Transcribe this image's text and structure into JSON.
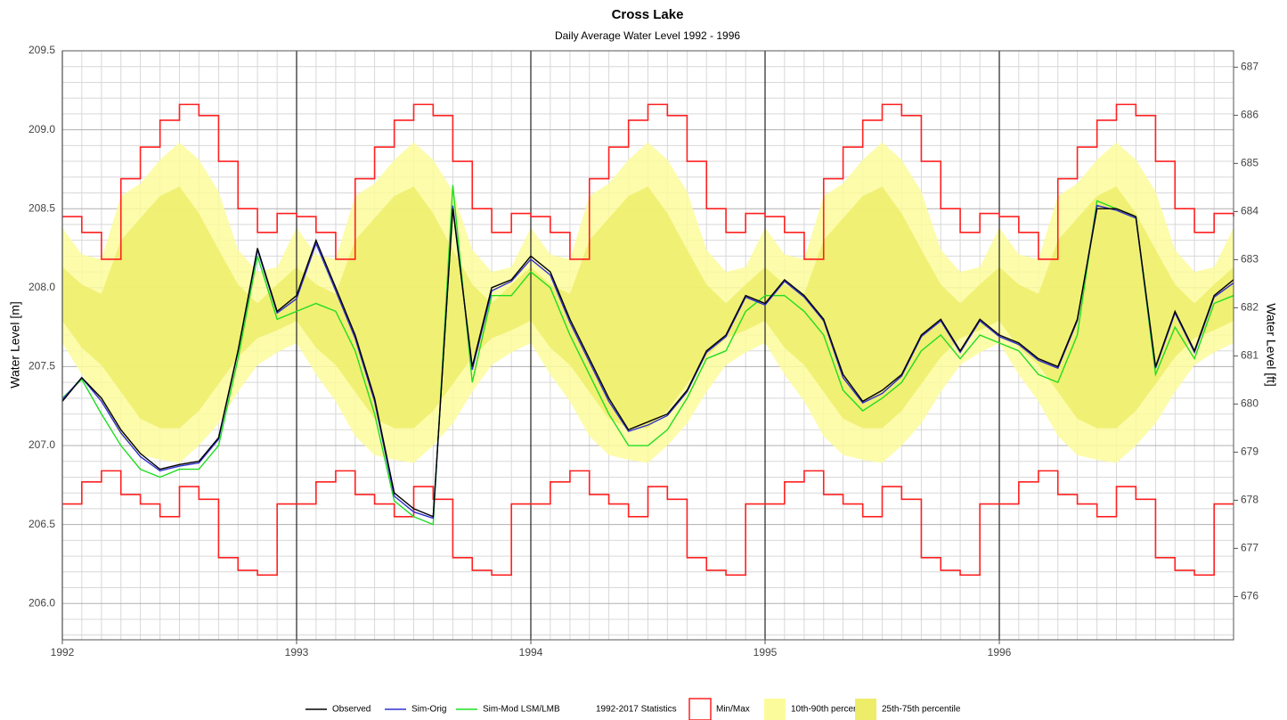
{
  "chart_data": {
    "type": "line",
    "title": "Cross Lake",
    "subtitle": "Daily Average Water Level 1992 - 1996",
    "ylabel": "Water Level [m]",
    "y2label": "Water Level [ft]",
    "x": [
      1992,
      1992.083,
      1992.167,
      1992.25,
      1992.333,
      1992.417,
      1992.5,
      1992.583,
      1992.667,
      1992.75,
      1992.833,
      1992.917,
      1993,
      1993.083,
      1993.167,
      1993.25,
      1993.333,
      1993.417,
      1993.5,
      1993.583,
      1993.667,
      1993.75,
      1993.833,
      1993.917,
      1994,
      1994.083,
      1994.167,
      1994.25,
      1994.333,
      1994.417,
      1994.5,
      1994.583,
      1994.667,
      1994.75,
      1994.833,
      1994.917,
      1995,
      1995.083,
      1995.167,
      1995.25,
      1995.333,
      1995.417,
      1995.5,
      1995.583,
      1995.667,
      1995.75,
      1995.833,
      1995.917,
      1996,
      1996.083,
      1996.167,
      1996.25,
      1996.333,
      1996.417,
      1996.5,
      1996.583,
      1996.667,
      1996.75,
      1996.833,
      1996.917,
      1997
    ],
    "xlim": [
      1992,
      1997
    ],
    "xticks": [
      1992,
      1993,
      1994,
      1995,
      1996
    ],
    "ylim": [
      205.77,
      209.5
    ],
    "yticks": [
      {
        "value": 206,
        "label": "206.0"
      },
      206.5,
      {
        "value": 207,
        "label": "207.0"
      },
      207.5,
      {
        "value": 208,
        "label": "208.0"
      },
      208.5,
      {
        "value": 209,
        "label": "209.0"
      },
      209.5
    ],
    "yminorticks": [
      205.8,
      205.9,
      206.1,
      206.2,
      206.3,
      206.4,
      206.6,
      206.7,
      206.8,
      206.9,
      207.1,
      207.2,
      207.3,
      207.4,
      207.6,
      207.7,
      207.8,
      207.9,
      208.1,
      208.2,
      208.3,
      208.4,
      208.6,
      208.7,
      208.8,
      208.9,
      209.1,
      209.2,
      209.3,
      209.4
    ],
    "y2lim": [
      675.1,
      687.34
    ],
    "y2ticks": [
      676,
      677,
      678,
      679,
      680,
      681,
      682,
      683,
      684,
      685,
      686,
      687
    ],
    "grid": true,
    "legend_heading": "1992-2017 Statistics",
    "ranges": [
      {
        "name": "10th-90th percentile",
        "color": "#fbfb9c",
        "style": "fill",
        "upper": [
          208.38,
          208.21,
          208.18,
          208.58,
          208.66,
          208.81,
          208.92,
          208.81,
          208.61,
          208.24,
          208.1,
          208.13,
          208.38,
          208.21,
          208.18,
          208.58,
          208.66,
          208.81,
          208.92,
          208.81,
          208.61,
          208.24,
          208.1,
          208.13,
          208.38,
          208.21,
          208.18,
          208.58,
          208.66,
          208.81,
          208.92,
          208.81,
          208.61,
          208.24,
          208.1,
          208.13,
          208.38,
          208.21,
          208.18,
          208.58,
          208.66,
          208.81,
          208.92,
          208.81,
          208.61,
          208.24,
          208.1,
          208.13,
          208.38,
          208.21,
          208.18,
          208.58,
          208.66,
          208.81,
          208.92,
          208.81,
          208.61,
          208.24,
          208.1,
          208.13,
          208.38
        ],
        "lower": [
          207.65,
          207.45,
          207.28,
          207.06,
          206.94,
          206.91,
          206.89,
          207.0,
          207.14,
          207.34,
          207.51,
          207.59,
          207.65,
          207.45,
          207.28,
          207.06,
          206.94,
          206.91,
          206.89,
          207.0,
          207.14,
          207.34,
          207.51,
          207.59,
          207.65,
          207.45,
          207.28,
          207.06,
          206.94,
          206.91,
          206.89,
          207.0,
          207.14,
          207.34,
          207.51,
          207.59,
          207.65,
          207.45,
          207.28,
          207.06,
          206.94,
          206.91,
          206.89,
          207.0,
          207.14,
          207.34,
          207.51,
          207.59,
          207.65,
          207.45,
          207.28,
          207.06,
          206.94,
          206.91,
          206.89,
          207.0,
          207.14,
          207.34,
          207.51,
          207.59,
          207.65
        ]
      },
      {
        "name": "25th-75th percentile",
        "color": "#eded6a",
        "style": "fill",
        "upper": [
          208.13,
          208.02,
          207.96,
          208.3,
          208.44,
          208.58,
          208.64,
          208.47,
          208.24,
          208.02,
          207.9,
          208.02,
          208.13,
          208.02,
          207.96,
          208.3,
          208.44,
          208.58,
          208.64,
          208.47,
          208.24,
          208.02,
          207.9,
          208.02,
          208.13,
          208.02,
          207.96,
          208.3,
          208.44,
          208.58,
          208.64,
          208.47,
          208.24,
          208.02,
          207.9,
          208.02,
          208.13,
          208.02,
          207.96,
          208.3,
          208.44,
          208.58,
          208.64,
          208.47,
          208.24,
          208.02,
          207.9,
          208.02,
          208.13,
          208.02,
          207.96,
          208.3,
          208.44,
          208.58,
          208.64,
          208.47,
          208.24,
          208.02,
          207.9,
          208.02,
          208.13
        ],
        "lower": [
          207.79,
          207.62,
          207.51,
          207.34,
          207.17,
          207.11,
          207.11,
          207.22,
          207.39,
          207.56,
          207.68,
          207.73,
          207.79,
          207.62,
          207.51,
          207.34,
          207.17,
          207.11,
          207.11,
          207.22,
          207.39,
          207.56,
          207.68,
          207.73,
          207.79,
          207.62,
          207.51,
          207.34,
          207.17,
          207.11,
          207.11,
          207.22,
          207.39,
          207.56,
          207.68,
          207.73,
          207.79,
          207.62,
          207.51,
          207.34,
          207.17,
          207.11,
          207.11,
          207.22,
          207.39,
          207.56,
          207.68,
          207.73,
          207.79,
          207.62,
          207.51,
          207.34,
          207.17,
          207.11,
          207.11,
          207.22,
          207.39,
          207.56,
          207.68,
          207.73,
          207.79
        ]
      },
      {
        "name": "Min/Max",
        "color": "#ff2020",
        "style": "outline",
        "upper": [
          208.45,
          208.35,
          208.18,
          208.69,
          208.89,
          209.06,
          209.16,
          209.09,
          208.8,
          208.5,
          208.35,
          208.47,
          208.45,
          208.35,
          208.18,
          208.69,
          208.89,
          209.06,
          209.16,
          209.09,
          208.8,
          208.5,
          208.35,
          208.47,
          208.45,
          208.35,
          208.18,
          208.69,
          208.89,
          209.06,
          209.16,
          209.09,
          208.8,
          208.5,
          208.35,
          208.47,
          208.45,
          208.35,
          208.18,
          208.69,
          208.89,
          209.06,
          209.16,
          209.09,
          208.8,
          208.5,
          208.35,
          208.47,
          208.45,
          208.35,
          208.18,
          208.69,
          208.89,
          209.06,
          209.16,
          209.09,
          208.8,
          208.5,
          208.35,
          208.47,
          208.45
        ],
        "lower": [
          206.63,
          206.77,
          206.84,
          206.69,
          206.63,
          206.55,
          206.74,
          206.66,
          206.29,
          206.21,
          206.18,
          206.63,
          206.63,
          206.77,
          206.84,
          206.69,
          206.63,
          206.55,
          206.74,
          206.66,
          206.29,
          206.21,
          206.18,
          206.63,
          206.63,
          206.77,
          206.84,
          206.69,
          206.63,
          206.55,
          206.74,
          206.66,
          206.29,
          206.21,
          206.18,
          206.63,
          206.63,
          206.77,
          206.84,
          206.69,
          206.63,
          206.55,
          206.74,
          206.66,
          206.29,
          206.21,
          206.18,
          206.63,
          206.63,
          206.77,
          206.84,
          206.69,
          206.63,
          206.55,
          206.74,
          206.66,
          206.29,
          206.21,
          206.18,
          206.63,
          206.63
        ]
      }
    ],
    "series": [
      {
        "name": "Observed",
        "color": "#000000",
        "values": [
          207.28,
          207.43,
          207.3,
          207.1,
          206.95,
          206.85,
          206.88,
          206.9,
          207.05,
          207.6,
          208.25,
          207.85,
          207.95,
          208.3,
          208.0,
          207.7,
          207.3,
          206.7,
          206.6,
          206.55,
          208.5,
          207.5,
          208.0,
          208.05,
          208.2,
          208.1,
          207.8,
          207.55,
          207.3,
          207.1,
          207.15,
          207.2,
          207.35,
          207.6,
          207.7,
          207.95,
          207.9,
          208.05,
          207.95,
          207.8,
          207.45,
          207.28,
          207.35,
          207.45,
          207.7,
          207.8,
          207.6,
          207.8,
          207.7,
          207.65,
          207.55,
          207.5,
          207.8,
          208.5,
          208.5,
          208.45,
          207.5,
          207.85,
          207.6,
          207.95,
          208.05
        ]
      },
      {
        "name": "Sim-Orig",
        "color": "#3030d0",
        "values": [
          207.29,
          207.43,
          207.28,
          207.08,
          206.93,
          206.84,
          206.87,
          206.89,
          207.04,
          207.6,
          208.24,
          207.84,
          207.93,
          208.28,
          207.98,
          207.68,
          207.28,
          206.68,
          206.58,
          206.54,
          208.52,
          207.48,
          207.98,
          208.04,
          208.18,
          208.08,
          207.78,
          207.53,
          207.28,
          207.09,
          207.13,
          207.19,
          207.34,
          207.59,
          207.69,
          207.94,
          207.89,
          208.04,
          207.94,
          207.79,
          207.43,
          207.27,
          207.33,
          207.44,
          207.69,
          207.79,
          207.59,
          207.79,
          207.69,
          207.64,
          207.54,
          207.49,
          207.79,
          208.52,
          208.49,
          208.44,
          207.49,
          207.84,
          207.59,
          207.94,
          208.03
        ]
      },
      {
        "name": "Sim-Mod LSM/LMB",
        "color": "#20dd20",
        "values": [
          207.3,
          207.42,
          207.2,
          207.0,
          206.85,
          206.8,
          206.85,
          206.85,
          207.0,
          207.55,
          208.2,
          207.8,
          207.85,
          207.9,
          207.85,
          207.6,
          207.2,
          206.65,
          206.55,
          206.5,
          208.65,
          207.4,
          207.95,
          207.95,
          208.1,
          208.0,
          207.7,
          207.45,
          207.2,
          207.0,
          207.0,
          207.1,
          207.3,
          207.55,
          207.6,
          207.85,
          207.95,
          207.95,
          207.85,
          207.7,
          207.35,
          207.22,
          207.3,
          207.4,
          207.6,
          207.7,
          207.55,
          207.7,
          207.65,
          207.6,
          207.45,
          207.4,
          207.7,
          208.55,
          208.5,
          208.45,
          207.45,
          207.75,
          207.55,
          207.9,
          207.95
        ]
      }
    ]
  }
}
